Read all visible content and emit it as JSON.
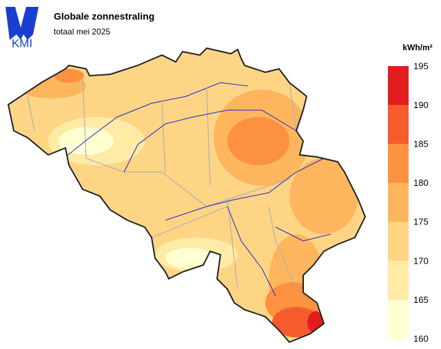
{
  "header": {
    "logo": "KMI",
    "title": "Globale zonnestraling",
    "subtitle": "totaal mei 2025"
  },
  "legend": {
    "unit": "kWh/m²",
    "ticks": [
      160,
      165,
      170,
      175,
      180,
      185,
      190,
      195
    ],
    "colors": [
      "#ffffd2",
      "#feeba6",
      "#fdd585",
      "#fdb65e",
      "#fc9140",
      "#f65b2e",
      "#e21d1d"
    ]
  }
}
